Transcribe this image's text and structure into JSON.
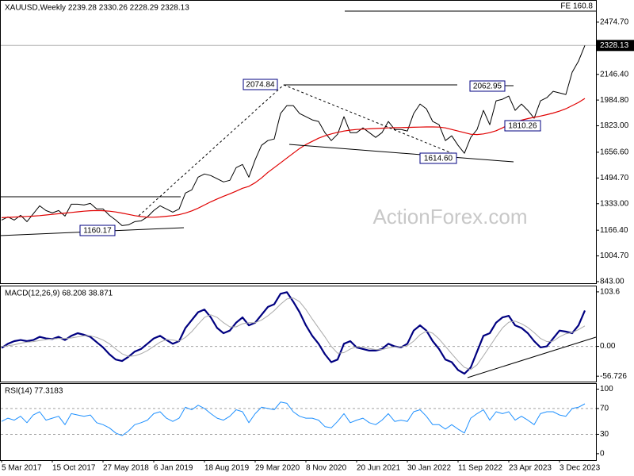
{
  "chart_data": [
    {
      "type": "line",
      "title": "XAUUSD,Weekly  2239.28 2330.26 2228.29 2328.13",
      "watermark": "ActionForex.com",
      "annotations": [
        "2074.84",
        "1160.17",
        "1614.60",
        "2062.95",
        "1810.26",
        "FE 160.8"
      ],
      "categories": [
        "5 Mar 2017",
        null,
        null,
        null,
        null,
        null,
        null,
        null,
        "15 Oct 2017",
        null,
        null,
        null,
        null,
        null,
        null,
        null,
        "27 May 2018",
        null,
        null,
        null,
        null,
        null,
        null,
        null,
        "6 Jan 2019",
        null,
        null,
        null,
        null,
        null,
        null,
        null,
        "18 Aug 2019",
        null,
        null,
        null,
        null,
        null,
        null,
        null,
        "29 Mar 2020",
        null,
        null,
        null,
        null,
        null,
        null,
        null,
        "8 Nov 2020",
        null,
        null,
        null,
        null,
        null,
        null,
        null,
        "20 Jun 2021",
        null,
        null,
        null,
        null,
        null,
        null,
        null,
        "30 Jan 2022",
        null,
        null,
        null,
        null,
        null,
        null,
        null,
        "11 Sep 2022",
        null,
        null,
        null,
        null,
        null,
        null,
        null,
        "23 Apr 2023",
        null,
        null,
        null,
        null,
        null,
        null,
        null,
        "3 Dec 2023",
        null,
        null,
        null,
        null
      ],
      "series": [
        {
          "color": "#000000",
          "values": [
            1230,
            1250,
            1230,
            1260,
            1220,
            1270,
            1320,
            1290,
            1275,
            1290,
            1255,
            1330,
            1330,
            1325,
            1335,
            1300,
            1300,
            1260,
            1230,
            1195,
            1200,
            1220,
            1225,
            1250,
            1290,
            1320,
            1300,
            1280,
            1300,
            1400,
            1420,
            1500,
            1520,
            1510,
            1490,
            1470,
            1480,
            1560,
            1580,
            1500,
            1610,
            1700,
            1730,
            1740,
            1900,
            1950,
            1950,
            1900,
            1880,
            1860,
            1850,
            1780,
            1730,
            1770,
            1880,
            1780,
            1780,
            1810,
            1780,
            1750,
            1780,
            1850,
            1800,
            1800,
            1790,
            1900,
            1960,
            1930,
            1850,
            1830,
            1730,
            1760,
            1700,
            1650,
            1750,
            1800,
            1920,
            1830,
            1980,
            1990,
            2010,
            1920,
            1960,
            1920,
            1870,
            1980,
            2000,
            2040,
            2030,
            2020,
            2160,
            2230,
            2328.13
          ]
        },
        {
          "color": "#e00000",
          "values": [
            1245,
            1247,
            1249,
            1251,
            1253,
            1255,
            1258,
            1262,
            1266,
            1270,
            1274,
            1278,
            1282,
            1286,
            1289,
            1290,
            1289,
            1286,
            1281,
            1274,
            1266,
            1258,
            1252,
            1248,
            1248,
            1250,
            1254,
            1258,
            1264,
            1274,
            1288,
            1305,
            1325,
            1345,
            1363,
            1380,
            1395,
            1412,
            1430,
            1442,
            1465,
            1495,
            1530,
            1560,
            1590,
            1620,
            1650,
            1680,
            1705,
            1725,
            1745,
            1760,
            1772,
            1782,
            1790,
            1796,
            1800,
            1802,
            1804,
            1806,
            1808,
            1810,
            1811,
            1812,
            1813,
            1814,
            1815,
            1816,
            1816,
            1815,
            1810,
            1800,
            1790,
            1780,
            1770,
            1768,
            1772,
            1780,
            1792,
            1810,
            1830,
            1845,
            1858,
            1868,
            1876,
            1884,
            1893,
            1903,
            1915,
            1930,
            1950,
            1970,
            1995
          ]
        }
      ],
      "ylim": [
        833,
        2609
      ],
      "yticks": [
        {
          "value": 843,
          "label": "843.00"
        },
        {
          "value": 1004.7,
          "label": "1004.70"
        },
        {
          "value": 1166.4,
          "label": "1166.40"
        },
        {
          "value": 1333,
          "label": "1333.00"
        },
        {
          "value": 1494.7,
          "label": "1494.70"
        },
        {
          "value": 1656.6,
          "label": "1656.60"
        },
        {
          "value": 1823,
          "label": "1823.00"
        },
        {
          "value": 1984.8,
          "label": "1984.80"
        },
        {
          "value": 2146.4,
          "label": "2146.40"
        },
        {
          "value": 2474.7,
          "label": "2474.70"
        }
      ]
    },
    {
      "type": "line",
      "title": "MACD(12,26,9) 68.208 38.871",
      "series": [
        {
          "color": "#000080",
          "values": [
            -3,
            5,
            10,
            12,
            10,
            12,
            18,
            15,
            14,
            18,
            12,
            20,
            25,
            22,
            18,
            8,
            -2,
            -15,
            -25,
            -28,
            -20,
            -10,
            -5,
            5,
            15,
            20,
            12,
            5,
            10,
            35,
            50,
            65,
            70,
            55,
            35,
            25,
            30,
            45,
            55,
            40,
            45,
            60,
            75,
            80,
            100,
            103,
            85,
            65,
            40,
            20,
            5,
            -15,
            -30,
            -25,
            5,
            10,
            -2,
            -5,
            -8,
            -8,
            -5,
            5,
            0,
            -2,
            5,
            30,
            40,
            30,
            10,
            -5,
            -25,
            -30,
            -45,
            -52,
            -40,
            -10,
            20,
            25,
            45,
            55,
            58,
            40,
            35,
            25,
            10,
            -2,
            0,
            15,
            30,
            28,
            25,
            40,
            68.208
          ]
        },
        {
          "color": "#a9a9a9",
          "values": [
            0,
            1,
            3,
            6,
            8,
            9,
            11,
            13,
            14,
            15,
            15,
            16,
            18,
            20,
            20,
            17,
            12,
            5,
            -5,
            -14,
            -19,
            -18,
            -14,
            -8,
            0,
            8,
            13,
            12,
            10,
            17,
            28,
            42,
            55,
            60,
            55,
            45,
            37,
            37,
            43,
            45,
            45,
            50,
            58,
            68,
            80,
            90,
            92,
            85,
            70,
            52,
            35,
            18,
            0,
            -13,
            -12,
            -5,
            -1,
            -2,
            -4,
            -6,
            -6,
            -3,
            -1,
            -1,
            1,
            10,
            22,
            29,
            25,
            14,
            0,
            -14,
            -28,
            -40,
            -44,
            -35,
            -18,
            0,
            18,
            35,
            46,
            48,
            43,
            36,
            26,
            15,
            9,
            10,
            18,
            24,
            26,
            32,
            38.871
          ]
        }
      ],
      "ylim": [
        -67,
        114
      ],
      "yticks": [
        103.6,
        {
          "value": 0,
          "label": "0.00"
        },
        -56.726
      ],
      "levels": [
        0
      ]
    },
    {
      "type": "line",
      "title": "RSI(14) 77.3183",
      "series": [
        {
          "color": "#1e90ff",
          "values": [
            50,
            55,
            52,
            58,
            48,
            60,
            65,
            52,
            55,
            58,
            45,
            62,
            60,
            58,
            60,
            48,
            45,
            40,
            32,
            28,
            35,
            45,
            48,
            52,
            62,
            65,
            55,
            50,
            55,
            72,
            68,
            75,
            70,
            62,
            55,
            52,
            58,
            68,
            65,
            48,
            62,
            72,
            70,
            68,
            80,
            78,
            65,
            58,
            55,
            55,
            52,
            42,
            40,
            50,
            62,
            48,
            52,
            55,
            48,
            45,
            52,
            62,
            50,
            52,
            50,
            65,
            68,
            58,
            45,
            45,
            38,
            45,
            38,
            32,
            55,
            62,
            68,
            52,
            65,
            62,
            65,
            52,
            58,
            52,
            45,
            62,
            65,
            65,
            60,
            58,
            70,
            72,
            77.3183
          ]
        }
      ],
      "ylim": [
        -10,
        108
      ],
      "yticks": [
        100,
        70,
        30,
        0
      ],
      "levels": [
        70,
        30
      ]
    }
  ]
}
